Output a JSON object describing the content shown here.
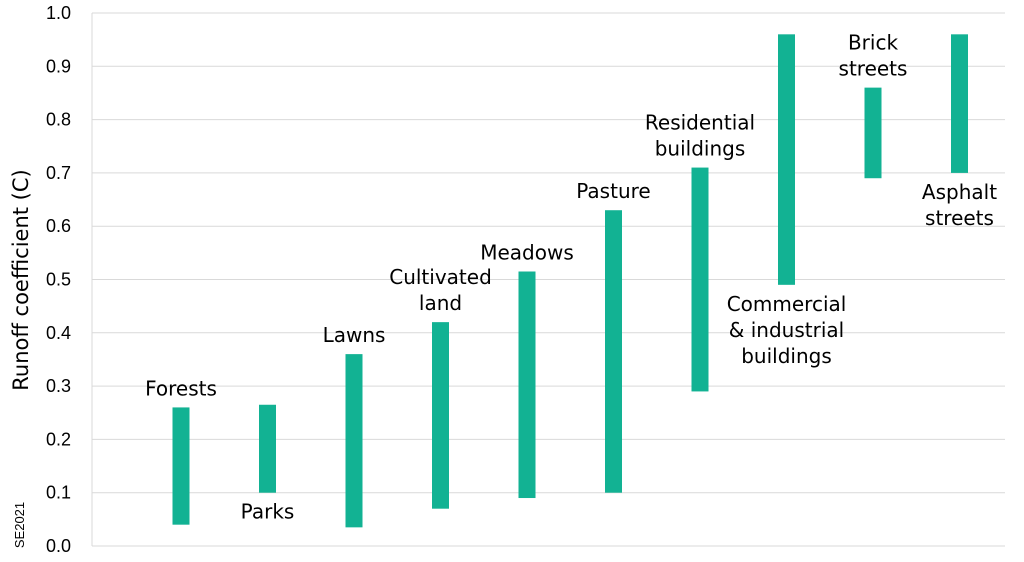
{
  "chart_data": {
    "type": "bar",
    "subtype": "floating-range",
    "title": "",
    "xlabel": "",
    "ylabel": "Runoff  coefficient (C)",
    "ylim": [
      0,
      1.0
    ],
    "yticks": [
      "0.0",
      "0.1",
      "0.2",
      "0.3",
      "0.4",
      "0.5",
      "0.6",
      "0.7",
      "0.8",
      "0.9",
      "1.0"
    ],
    "grid": true,
    "legend": "none",
    "bar_color": "#12b293",
    "categories": [
      {
        "lines": [
          "Forests"
        ],
        "low": 0.04,
        "high": 0.26,
        "label_pos": "above"
      },
      {
        "lines": [
          "Parks"
        ],
        "low": 0.1,
        "high": 0.265,
        "label_pos": "below"
      },
      {
        "lines": [
          "Lawns"
        ],
        "low": 0.035,
        "high": 0.36,
        "label_pos": "above"
      },
      {
        "lines": [
          "Cultivated",
          "land"
        ],
        "low": 0.07,
        "high": 0.42,
        "label_pos": "above"
      },
      {
        "lines": [
          "Meadows"
        ],
        "low": 0.09,
        "high": 0.515,
        "label_pos": "above"
      },
      {
        "lines": [
          "Pasture"
        ],
        "low": 0.1,
        "high": 0.63,
        "label_pos": "above"
      },
      {
        "lines": [
          "Residential",
          "buildings"
        ],
        "low": 0.29,
        "high": 0.71,
        "label_pos": "above"
      },
      {
        "lines": [
          "Commercial",
          "& industrial",
          "buildings"
        ],
        "low": 0.49,
        "high": 0.96,
        "label_pos": "below"
      },
      {
        "lines": [
          "Brick",
          "streets"
        ],
        "low": 0.69,
        "high": 0.86,
        "label_pos": "above"
      },
      {
        "lines": [
          "Asphalt",
          "streets"
        ],
        "low": 0.7,
        "high": 0.96,
        "label_pos": "below"
      }
    ]
  },
  "watermark": "SE2021"
}
